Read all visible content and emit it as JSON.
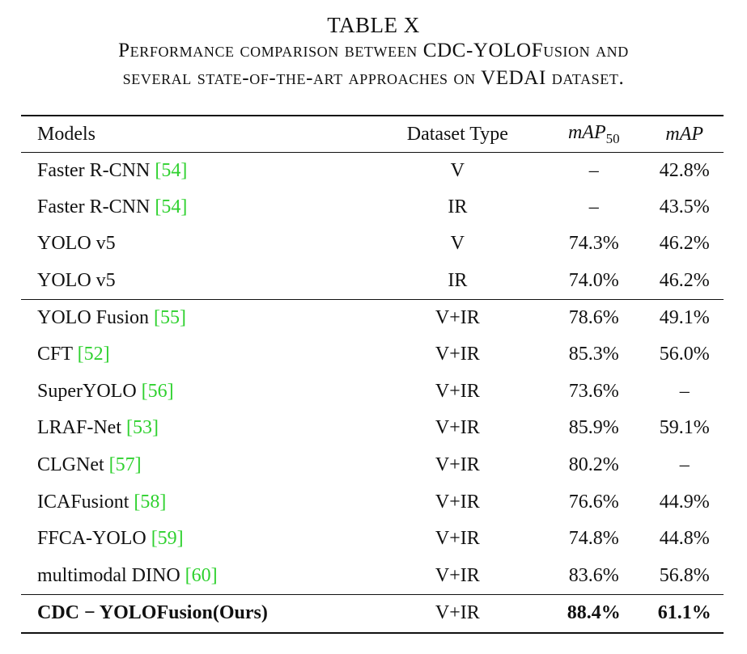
{
  "caption": {
    "label": "TABLE X",
    "line1": "Performance comparison between CDC-YOLOFusion and",
    "line2": "several state-of-the-art approaches on VEDAI dataset."
  },
  "columns": {
    "models": "Models",
    "dataset_type": "Dataset Type",
    "map50_base": "mAP",
    "map50_sub": "50",
    "map": "mAP"
  },
  "rows": [
    {
      "model": "Faster R-CNN",
      "ref": "[54]",
      "type": "V",
      "map50": "–",
      "map": "42.8%"
    },
    {
      "model": "Faster R-CNN",
      "ref": "[54]",
      "type": "IR",
      "map50": "–",
      "map": "43.5%"
    },
    {
      "model": "YOLO v5",
      "ref": "",
      "type": "V",
      "map50": "74.3%",
      "map": "46.2%"
    },
    {
      "model": "YOLO v5",
      "ref": "",
      "type": "IR",
      "map50": "74.0%",
      "map": "46.2%"
    },
    {
      "model": "YOLO Fusion",
      "ref": "[55]",
      "type": "V+IR",
      "map50": "78.6%",
      "map": "49.1%"
    },
    {
      "model": "CFT",
      "ref": "[52]",
      "type": "V+IR",
      "map50": "85.3%",
      "map": "56.0%"
    },
    {
      "model": "SuperYOLO",
      "ref": "[56]",
      "type": "V+IR",
      "map50": "73.6%",
      "map": "–"
    },
    {
      "model": "LRAF-Net",
      "ref": "[53]",
      "type": "V+IR",
      "map50": "85.9%",
      "map": "59.1%"
    },
    {
      "model": "CLGNet",
      "ref": "[57]",
      "type": "V+IR",
      "map50": "80.2%",
      "map": "–"
    },
    {
      "model": "ICAFusiont",
      "ref": "[58]",
      "type": "V+IR",
      "map50": "76.6%",
      "map": "44.9%"
    },
    {
      "model": "FFCA-YOLO",
      "ref": "[59]",
      "type": "V+IR",
      "map50": "74.8%",
      "map": "44.8%"
    },
    {
      "model": "multimodal DINO",
      "ref": "[60]",
      "type": "V+IR",
      "map50": "83.6%",
      "map": "56.8%"
    }
  ],
  "ours": {
    "model": "CDC − YOLOFusion(Ours)",
    "type": "V+IR",
    "map50": "88.4%",
    "map": "61.1%"
  },
  "colors": {
    "reference_link": "#2fd12f",
    "text": "#111111"
  }
}
